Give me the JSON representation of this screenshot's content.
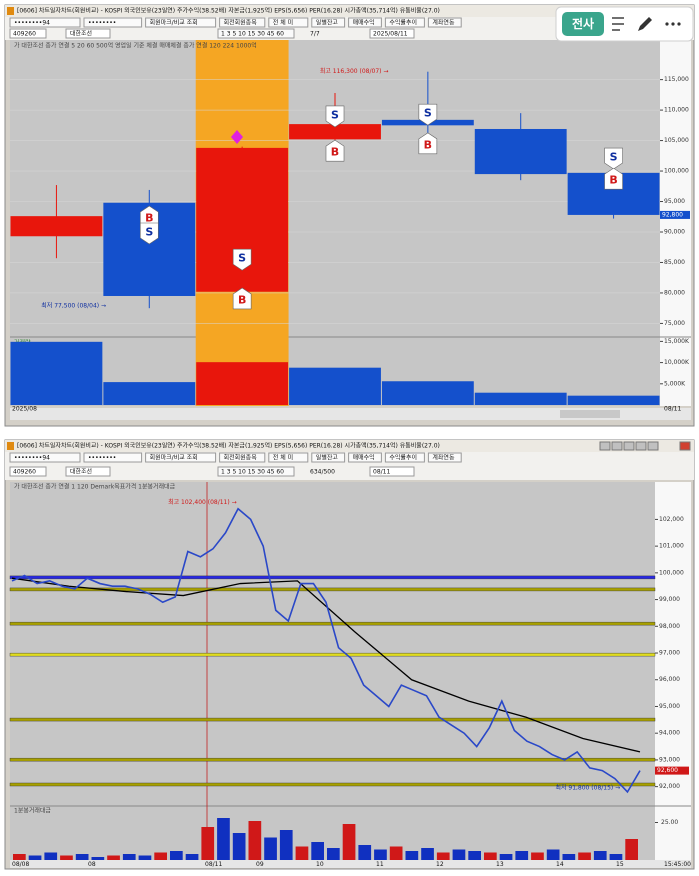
{
  "app_toolbar": {
    "button": "전사"
  },
  "window1": {
    "title": "[0606] 차트일자차트(회원비교) - KOSPI  외국인보유(23일연)  주가수익(38.52배)  자본금(1,925억)  EPS(5,656)  PER(16.28)  시가총액(35,714억)  유통비율(27.0)",
    "toolbar": [
      "••••••••94",
      "••••••••",
      "회원마크/비교 조회",
      "회전회원종목",
      "전 체 미",
      "일별잔고",
      "매매수익",
      "수익률추이",
      "계좌연동"
    ],
    "code": "409260",
    "name": "대한조선",
    "periods": "1  3  5  10  15  30  45  60",
    "count": "7/7",
    "date": "2025/08/11",
    "legend": "가 대한조선   종가 연결 5   20   60   500억 영업일 기준 체결   매매체결   종가 연결 120   224   1000억",
    "price_ylim": [
      73100,
      121500
    ],
    "price_yticks": [
      {
        "value": 115000,
        "label": "115,000"
      },
      {
        "value": 110000,
        "label": "110,000"
      },
      {
        "value": 105000,
        "label": "105,000"
      },
      {
        "value": 100000,
        "label": "100,000"
      },
      {
        "value": 95000,
        "label": "95,000"
      },
      {
        "value": 90000,
        "label": "90,000"
      },
      {
        "value": 85000,
        "label": "85,000"
      },
      {
        "value": 80000,
        "label": "80,000"
      },
      {
        "value": 75000,
        "label": "75,000"
      }
    ],
    "up_color": "#e8160c",
    "down_color": "#1450cc",
    "highlight_color": "#f5a623",
    "candles": [
      {
        "open": 89300,
        "high": 97700,
        "low": 85700,
        "close": 92600
      },
      {
        "open": 94800,
        "high": 96900,
        "low": 77500,
        "close": 79500
      },
      {
        "open": 80200,
        "high": 104000,
        "low": 79800,
        "close": 103800
      },
      {
        "open": 105200,
        "high": 112800,
        "low": 105000,
        "close": 107700
      },
      {
        "open": 108400,
        "high": 116300,
        "low": 105000,
        "close": 107500
      },
      {
        "open": 106900,
        "high": 109500,
        "low": 98500,
        "close": 99500
      },
      {
        "open": 99700,
        "high": 100100,
        "low": 92200,
        "close": 92800
      }
    ],
    "signals": [
      [],
      [
        {
          "text": "B",
          "price": 92300
        },
        {
          "text": "S",
          "price": 90000
        }
      ],
      [
        {
          "text": "S",
          "price": 85700
        },
        {
          "text": "B",
          "price": 78850
        }
      ],
      [
        {
          "text": "S",
          "price": 109200
        },
        {
          "text": "B",
          "price": 103100
        }
      ],
      [
        {
          "text": "S",
          "price": 109500
        },
        {
          "text": "B",
          "price": 104300
        }
      ],
      [],
      [
        {
          "text": "S",
          "price": 102300
        },
        {
          "text": "B",
          "price": 98500
        }
      ]
    ],
    "high_note": "최고 116,300 (08/07) →",
    "low_note": "최저 77,500 (08/04) →",
    "last_price": {
      "value": 92800,
      "label": "92,800"
    },
    "volume_label": "거래량",
    "volume_ylim": [
      0,
      15800
    ],
    "volume_yticks": [
      {
        "value": 15000,
        "label": "15,000K"
      },
      {
        "value": 10000,
        "label": "10,000K"
      },
      {
        "value": 5000,
        "label": "5,000K"
      }
    ],
    "volume_color": "#1450cc",
    "volume_highlight_color": "#e8160c",
    "volume": [
      14900,
      5400,
      10100,
      8800,
      5600,
      2900,
      2200
    ],
    "x_labels": [
      "2025/08",
      "08/11"
    ]
  },
  "window2": {
    "title": "[0606] 차트일자차트(회원비교) - KOSPI  외국인보유(23일연)  주가수익(38.52배)  자본금(1,925억)  EPS(5,656)  PER(16.28)  시가총액(35,714억)  유통비율(27.0)",
    "toolbar": [
      "••••••••94",
      "••••••••",
      "회원마크/비교 조회",
      "회전회원종목",
      "전 체 미",
      "일별잔고",
      "매매수익",
      "수익률추이",
      "계좌연동"
    ],
    "code": "409260",
    "name": "대한조선",
    "periods": "1  3  5  10  15  30  45  60",
    "count": "634/500",
    "date": "08/11",
    "legend": "가 대한조선   종가 연결 1   120   Demark목표가격   1분봉거래대금",
    "price_ylim": [
      91500,
      103400
    ],
    "price_yticks": [
      {
        "value": 102000,
        "label": "102,000"
      },
      {
        "value": 101000,
        "label": "101,000"
      },
      {
        "value": 100000,
        "label": "100,000"
      },
      {
        "value": 99000,
        "label": "99,000"
      },
      {
        "value": 98000,
        "label": "98,000"
      },
      {
        "value": 97000,
        "label": "97,000"
      },
      {
        "value": 96000,
        "label": "96,000"
      },
      {
        "value": 95000,
        "label": "95,000"
      },
      {
        "value": 94000,
        "label": "94,000"
      },
      {
        "value": 93000,
        "label": "93,000"
      },
      {
        "value": 92000,
        "label": "92,000"
      }
    ],
    "levels": [
      {
        "value": 99830,
        "color": "#2828e0"
      },
      {
        "value": 99380,
        "color": "#a8a000"
      },
      {
        "value": 98100,
        "color": "#a8a000"
      },
      {
        "value": 96940,
        "color": "#e0dc20"
      },
      {
        "value": 94510,
        "color": "#a8a000"
      },
      {
        "value": 93010,
        "color": "#a8a000"
      },
      {
        "value": 92080,
        "color": "#a8a000"
      }
    ],
    "price_color": "#2a48c8",
    "price": [
      99700,
      99900,
      99600,
      99700,
      99500,
      99400,
      99800,
      99600,
      99500,
      99500,
      99400,
      99200,
      98900,
      99100,
      100800,
      100600,
      100900,
      101500,
      102400,
      102000,
      101000,
      98600,
      98200,
      99600,
      99600,
      98900,
      97200,
      96800,
      95800,
      95400,
      95000,
      95800,
      95600,
      95400,
      94600,
      94300,
      94000,
      93500,
      94200,
      95200,
      94100,
      93700,
      93500,
      93200,
      93000,
      93300,
      92700,
      92600,
      92300,
      91800,
      92600
    ],
    "ma_color": "#000000",
    "ma": [
      99800,
      99500,
      99300,
      99150,
      99600,
      99700,
      97800,
      96000,
      95200,
      94600,
      93800,
      93300
    ],
    "high_note": "최고 102,400 (08/11) →",
    "low_note": "최저 91,800 (08/15) →",
    "last_price": {
      "value": 92600,
      "label": "92,600"
    },
    "volume_label": "1분봉거래대금",
    "volume_ylim": [
      0,
      30
    ],
    "volume_yticks": [
      {
        "value": 25,
        "label": "25.00"
      }
    ],
    "volume": [
      4,
      3,
      5,
      3,
      4,
      2,
      3,
      4,
      3,
      5,
      6,
      4,
      22,
      28,
      18,
      26,
      15,
      20,
      9,
      12,
      8,
      24,
      10,
      7,
      9,
      6,
      8,
      5,
      7,
      6,
      5,
      4,
      6,
      5,
      7,
      4,
      5,
      6,
      4,
      14
    ],
    "x_labels": [
      "08/08",
      "08",
      "08/11",
      "09",
      "10",
      "11",
      "12",
      "13",
      "14",
      "15",
      "15:45:00"
    ]
  }
}
